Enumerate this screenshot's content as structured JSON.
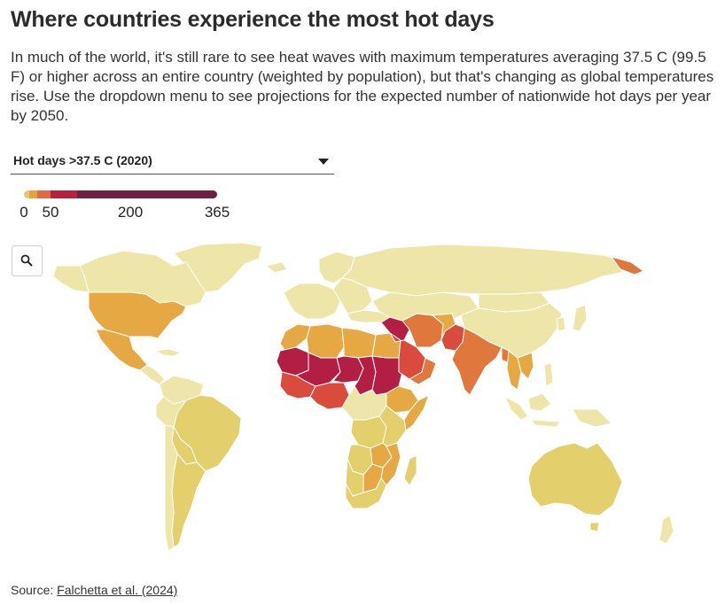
{
  "header": {
    "title": "Where countries experience the most hot days",
    "subtitle": "In much of the world, it's still rare to see heat waves with maximum temperatures averaging 37.5 C (99.5 F) or higher across an entire country (weighted by population), but that's changing as global temperatures rise. Use the dropdown menu to see projections for the expected number of nationwide hot days per year by 2050."
  },
  "dropdown": {
    "selected": "Hot days >37.5 C (2020)"
  },
  "legend": {
    "ticks": [
      "0",
      "50",
      "200",
      "365"
    ],
    "colors": [
      "#e8c872",
      "#e5a33f",
      "#e06a45",
      "#b8203f",
      "#6d2243"
    ],
    "breaks": [
      0,
      10,
      25,
      50,
      100,
      200,
      365
    ]
  },
  "colors": {
    "very_low": "#ede6a8",
    "low": "#e3cf6c",
    "medium": "#e6a843",
    "high": "#e0783d",
    "very_high": "#d84b3d",
    "extreme": "#b31e44"
  },
  "map": {
    "zoom_icon": "search-icon"
  },
  "source": {
    "label": "Source: ",
    "link_text": "Falchetta et al. (2024)"
  }
}
